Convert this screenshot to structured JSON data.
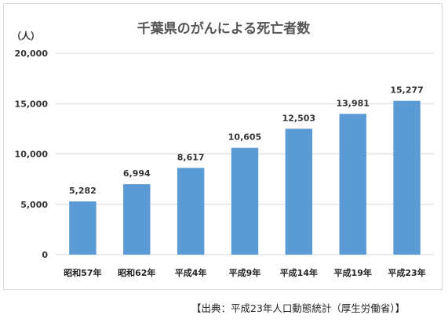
{
  "chart_data": {
    "type": "bar",
    "title": "千葉県のがんによる死亡者数",
    "unit_label": "（人）",
    "categories": [
      "昭和57年",
      "昭和62年",
      "平成4年",
      "平成9年",
      "平成14年",
      "平成19年",
      "平成23年"
    ],
    "values": [
      5282,
      6994,
      8617,
      10605,
      12503,
      13981,
      15277
    ],
    "data_labels": [
      "5,282",
      "6,994",
      "8,617",
      "10,605",
      "12,503",
      "13,981",
      "15,277"
    ],
    "yticks": [
      0,
      5000,
      10000,
      15000,
      20000
    ],
    "ytick_labels": [
      "0",
      "5,000",
      "10,000",
      "15,000",
      "20,000"
    ],
    "ylim": [
      0,
      20000
    ],
    "grid": true,
    "bar_color": "#5b9bd5",
    "grid_color": "#d9d9d9"
  },
  "source_note": "【出典：平成23年人口動態統計（厚生労働省）】"
}
